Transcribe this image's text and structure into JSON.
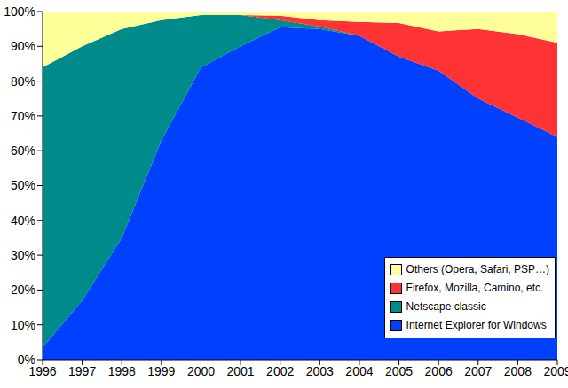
{
  "chart_data": {
    "type": "area",
    "stacked": true,
    "grid": false,
    "legend": "lower right",
    "x": [
      1996,
      1997,
      1998,
      1999,
      2000,
      2001,
      2002,
      2003,
      2004,
      2005,
      2006,
      2007,
      2008,
      2009
    ],
    "xlim": [
      1996,
      2009
    ],
    "xticks": [
      1996,
      1997,
      1998,
      1999,
      2000,
      2001,
      2002,
      2003,
      2004,
      2005,
      2006,
      2007,
      2008,
      2009
    ],
    "ylim": [
      0,
      100
    ],
    "yticks": [
      {
        "value": 0,
        "label": "0%"
      },
      {
        "value": 10,
        "label": "10%"
      },
      {
        "value": 20,
        "label": "20%"
      },
      {
        "value": 30,
        "label": "30%"
      },
      {
        "value": 40,
        "label": "40%"
      },
      {
        "value": 50,
        "label": "50%"
      },
      {
        "value": 60,
        "label": "60%"
      },
      {
        "value": 70,
        "label": "70%"
      },
      {
        "value": 80,
        "label": "80%"
      },
      {
        "value": 90,
        "label": "90%"
      },
      {
        "value": 100,
        "label": "100%"
      }
    ],
    "series": [
      {
        "name": "Internet Explorer for Windows",
        "color": "#0040ff",
        "values": [
          3.5,
          17,
          35,
          63,
          84,
          90,
          95.5,
          95,
          93,
          87,
          83,
          75,
          69.5,
          64
        ]
      },
      {
        "name": "Netscape classic",
        "color": "#008b8b",
        "values": [
          80.5,
          73,
          60,
          34.5,
          15,
          9,
          2,
          0.7,
          0,
          0,
          0,
          0,
          0,
          0
        ]
      },
      {
        "name": "Firefox, Mozilla, Camino, etc.",
        "color": "#ff3333",
        "values": [
          0,
          0,
          0,
          0,
          0,
          0,
          1.3,
          1.8,
          4,
          9.7,
          11.3,
          20,
          24,
          27
        ]
      },
      {
        "name": "Others (Opera, Safari, PSP…)",
        "color": "#ffff99",
        "values": [
          16,
          10,
          5,
          2.5,
          1,
          1,
          1.2,
          2.5,
          3,
          3.3,
          5.7,
          5,
          6.5,
          9
        ]
      }
    ]
  }
}
